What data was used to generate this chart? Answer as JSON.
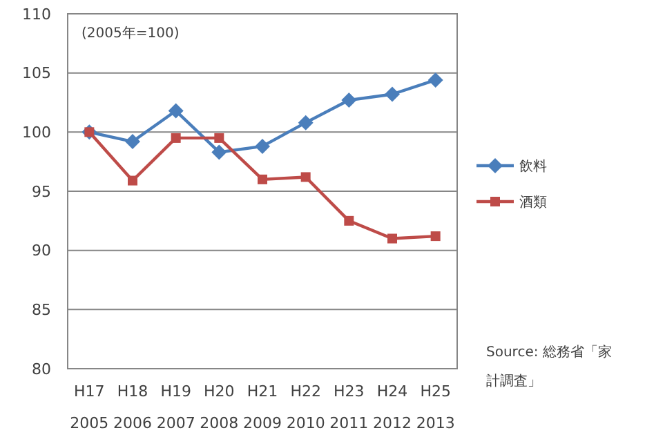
{
  "chart_data": {
    "type": "line",
    "categories": [
      "H17\n2005",
      "H18\n2006",
      "H19\n2007",
      "H20\n2008",
      "H21\n2009",
      "H22\n2010",
      "H23\n2011",
      "H24\n2012",
      "H25\n2013"
    ],
    "series": [
      {
        "name": "飲料",
        "color": "#4a7ebb",
        "marker": "diamond",
        "values": [
          100,
          99.2,
          101.8,
          98.3,
          98.8,
          100.8,
          102.7,
          103.2,
          104.4
        ]
      },
      {
        "name": "酒類",
        "color": "#be4b48",
        "marker": "square",
        "values": [
          100,
          95.9,
          99.5,
          99.5,
          96.0,
          96.2,
          92.5,
          91.0,
          91.2
        ]
      }
    ],
    "ylim": [
      80,
      110
    ],
    "yticks": [
      80,
      85,
      90,
      95,
      100,
      105,
      110
    ],
    "grid": "y",
    "legend": "right",
    "line_style": "solid",
    "annotations": [
      "(2005年=100)",
      "Source: 総務省「家計調査」"
    ]
  }
}
